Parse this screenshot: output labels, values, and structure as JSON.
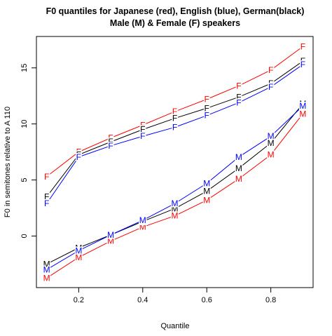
{
  "chart_data": {
    "type": "line",
    "title": [
      "F0 quantiles for Japanese (red), English (blue), German(black)",
      "Male (M) & Female (F) speakers"
    ],
    "xlabel": "Quantile",
    "ylabel": "F0 in semitones relative to A 110",
    "x": [
      0.1,
      0.2,
      0.3,
      0.4,
      0.5,
      0.6,
      0.7,
      0.8,
      0.9
    ],
    "xlim": [
      0.068,
      0.932
    ],
    "xticks": [
      0.2,
      0.4,
      0.6,
      0.8
    ],
    "ylim": [
      -4.6,
      17.8
    ],
    "yticks": [
      0,
      5,
      10,
      15
    ],
    "series": [
      {
        "marker": "F",
        "color": "#ff0000",
        "values": [
          5.3,
          7.5,
          8.75,
          9.9,
          11.1,
          12.2,
          13.4,
          14.8,
          16.9
        ]
      },
      {
        "marker": "F",
        "color": "#000000",
        "values": [
          3.5,
          7.25,
          8.4,
          9.5,
          10.5,
          11.4,
          12.4,
          13.6,
          15.6
        ]
      },
      {
        "marker": "F",
        "color": "#0000ff",
        "values": [
          2.9,
          7.05,
          8.05,
          8.9,
          9.7,
          10.75,
          11.9,
          13.3,
          15.3
        ]
      },
      {
        "marker": "M",
        "color": "#ff0000",
        "values": [
          -3.75,
          -1.9,
          -0.45,
          0.8,
          1.8,
          3.2,
          5.1,
          7.25,
          10.9
        ]
      },
      {
        "marker": "M",
        "color": "#000000",
        "values": [
          -2.5,
          -1.05,
          0.1,
          1.3,
          2.45,
          4.0,
          6.05,
          8.3,
          11.8
        ]
      },
      {
        "marker": "M",
        "color": "#0000ff",
        "values": [
          -3.0,
          -1.3,
          0.1,
          1.4,
          2.9,
          4.7,
          7.05,
          8.9,
          11.6
        ]
      }
    ]
  }
}
